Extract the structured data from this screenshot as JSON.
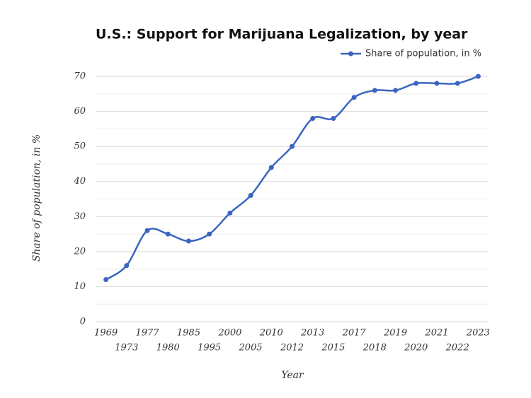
{
  "chart_data": {
    "type": "line",
    "title": "U.S.: Support for Marijuana Legalization, by year",
    "x_label": "Year",
    "y_label": "Share of population, in %",
    "categories": [
      "1969",
      "1973",
      "1977",
      "1980",
      "1985",
      "1995",
      "2000",
      "2005",
      "2010",
      "2012",
      "2013",
      "2015",
      "2017",
      "2018",
      "2019",
      "2020",
      "2021",
      "2022",
      "2023"
    ],
    "series": [
      {
        "name": "Share of population, in %",
        "color": "#3a66c0",
        "values": [
          12,
          16,
          26,
          25,
          23,
          25,
          31,
          36,
          44,
          50,
          58,
          58,
          64,
          66,
          66,
          68,
          68,
          68,
          70
        ]
      }
    ],
    "ylim": [
      0,
      70
    ],
    "yticks": [
      0,
      10,
      20,
      30,
      40,
      50,
      60,
      70
    ],
    "yminor": [
      5,
      15,
      25,
      35,
      45,
      55,
      65
    ],
    "grid": true,
    "legend": "top-right"
  }
}
